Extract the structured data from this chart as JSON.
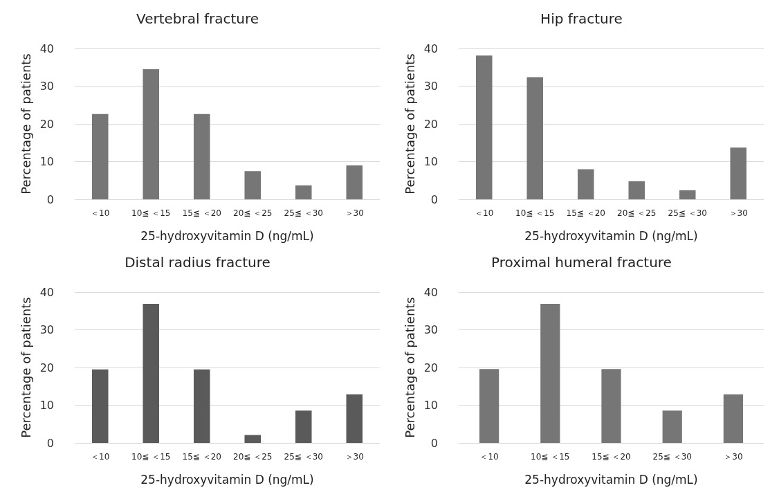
{
  "chart_data": [
    {
      "type": "bar",
      "title": "Vertebral fracture",
      "xlabel": "25-hydroxyvitamin D (ng/mL)",
      "ylabel": "Percentage of patients",
      "categories": [
        "＜10",
        "10≦ ＜15",
        "15≦ ＜20",
        "20≦ ＜25",
        "25≦ ＜30",
        "＞30"
      ],
      "values": [
        22.6,
        34.5,
        22.6,
        7.5,
        3.7,
        9.0
      ],
      "color": "#767676",
      "ylim": [
        0,
        40
      ],
      "yticks": [
        0,
        10,
        20,
        30,
        40
      ],
      "grid": "y"
    },
    {
      "type": "bar",
      "title": "Hip fracture",
      "xlabel": "25-hydroxyvitamin D (ng/mL)",
      "ylabel": "Percentage of patients",
      "categories": [
        "＜10",
        "10≦ ＜15",
        "15≦ ＜20",
        "20≦ ＜25",
        "25≦ ＜30",
        "＞30"
      ],
      "values": [
        38.1,
        32.4,
        8.0,
        4.8,
        2.4,
        13.7
      ],
      "color": "#767676",
      "ylim": [
        0,
        40
      ],
      "yticks": [
        0,
        10,
        20,
        30,
        40
      ],
      "grid": "y"
    },
    {
      "type": "bar",
      "title": "Distal radius fracture",
      "xlabel": "25-hydroxyvitamin D (ng/mL)",
      "ylabel": "Percentage of patients",
      "categories": [
        "＜10",
        "10≦ ＜15",
        "15≦ ＜20",
        "20≦ ＜25",
        "25≦ ＜30",
        "＞30"
      ],
      "values": [
        19.5,
        36.9,
        19.5,
        2.1,
        8.6,
        12.9
      ],
      "color": "#5a5a5a",
      "ylim": [
        0,
        40
      ],
      "yticks": [
        0,
        10,
        20,
        30,
        40
      ],
      "grid": "y"
    },
    {
      "type": "bar",
      "title": "Proximal humeral fracture",
      "xlabel": "25-hydroxyvitamin D (ng/mL)",
      "ylabel": "Percentage of patients",
      "categories": [
        "＜10",
        "10≦ ＜15",
        "15≦ ＜20",
        "25≦ ＜30",
        "＞30"
      ],
      "values": [
        19.6,
        36.9,
        19.6,
        8.6,
        12.9
      ],
      "color": "#767676",
      "ylim": [
        0,
        40
      ],
      "yticks": [
        0,
        10,
        20,
        30,
        40
      ],
      "grid": "y"
    }
  ]
}
